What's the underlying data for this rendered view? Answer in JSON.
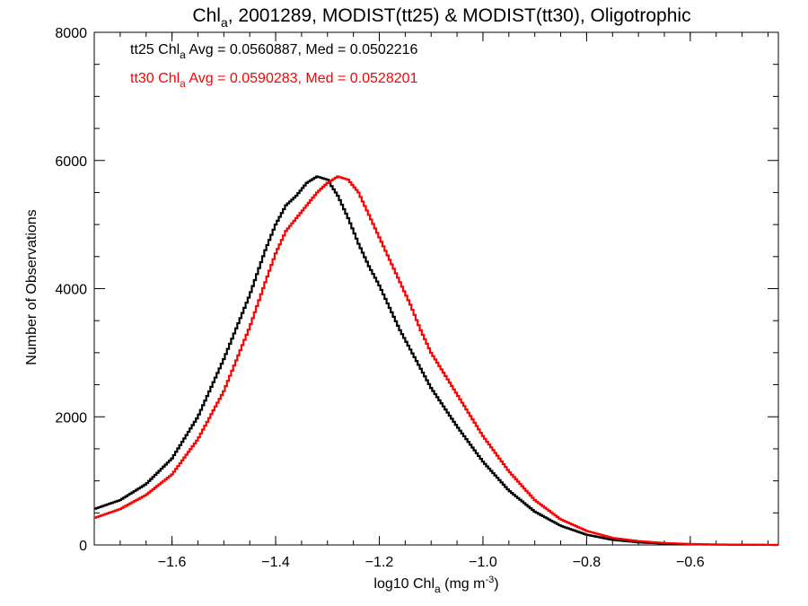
{
  "chart_data": {
    "type": "line",
    "step": true,
    "title": {
      "main": "Chl",
      "sub": "a",
      "rest": ", 2001289, MODIST(tt25) & MODIST(tt30), Oligotrophic"
    },
    "xlabel": {
      "main": "log10 Chl",
      "sub": "a",
      "rest": " (mg m",
      "sup": "-3",
      "end": ")"
    },
    "ylabel": "Number of Observations",
    "xlim": [
      -1.75,
      -0.43
    ],
    "ylim": [
      0,
      8000
    ],
    "xticks": [
      -1.6,
      -1.4,
      -1.2,
      -1.0,
      -0.8,
      -0.6
    ],
    "xtick_labels": [
      "−1.6",
      "−1.4",
      "−1.2",
      "−1.0",
      "−0.8",
      "−0.6"
    ],
    "yticks": [
      0,
      2000,
      4000,
      6000,
      8000
    ],
    "ytick_labels": [
      "0",
      "2000",
      "4000",
      "6000",
      "8000"
    ],
    "annotations": [
      {
        "pre": "tt25 Chl",
        "sub": "a",
        "post": " Avg = 0.0560887, Med = 0.0502216",
        "color": "#000000"
      },
      {
        "pre": "tt30 Chl",
        "sub": "a",
        "post": " Avg = 0.0590283, Med = 0.0528201",
        "color": "#ff0000"
      }
    ],
    "series": [
      {
        "name": "tt25",
        "color": "#000000",
        "x": [
          -1.75,
          -1.7,
          -1.65,
          -1.6,
          -1.55,
          -1.5,
          -1.45,
          -1.42,
          -1.4,
          -1.38,
          -1.36,
          -1.34,
          -1.32,
          -1.3,
          -1.28,
          -1.26,
          -1.24,
          -1.22,
          -1.2,
          -1.18,
          -1.16,
          -1.14,
          -1.12,
          -1.1,
          -1.05,
          -1.0,
          -0.95,
          -0.9,
          -0.85,
          -0.8,
          -0.75,
          -0.7,
          -0.65,
          -0.6,
          -0.55,
          -0.5,
          -0.43
        ],
        "y": [
          560,
          700,
          950,
          1350,
          2000,
          2900,
          3900,
          4600,
          5000,
          5300,
          5450,
          5650,
          5750,
          5700,
          5450,
          5100,
          4700,
          4350,
          4050,
          3700,
          3350,
          3050,
          2750,
          2450,
          1850,
          1300,
          850,
          520,
          300,
          160,
          80,
          40,
          20,
          10,
          5,
          3,
          0
        ]
      },
      {
        "name": "tt30",
        "color": "#ff0000",
        "x": [
          -1.75,
          -1.7,
          -1.65,
          -1.6,
          -1.55,
          -1.5,
          -1.45,
          -1.42,
          -1.4,
          -1.38,
          -1.36,
          -1.34,
          -1.32,
          -1.3,
          -1.28,
          -1.26,
          -1.24,
          -1.22,
          -1.2,
          -1.18,
          -1.16,
          -1.14,
          -1.12,
          -1.1,
          -1.05,
          -1.0,
          -0.95,
          -0.9,
          -0.85,
          -0.8,
          -0.75,
          -0.7,
          -0.65,
          -0.6,
          -0.55,
          -0.5,
          -0.43
        ],
        "y": [
          420,
          560,
          780,
          1100,
          1650,
          2400,
          3400,
          4100,
          4550,
          4900,
          5100,
          5300,
          5500,
          5650,
          5750,
          5700,
          5500,
          5150,
          4800,
          4450,
          4100,
          3750,
          3350,
          3000,
          2350,
          1700,
          1150,
          700,
          400,
          220,
          110,
          60,
          30,
          15,
          8,
          4,
          0
        ]
      }
    ]
  }
}
